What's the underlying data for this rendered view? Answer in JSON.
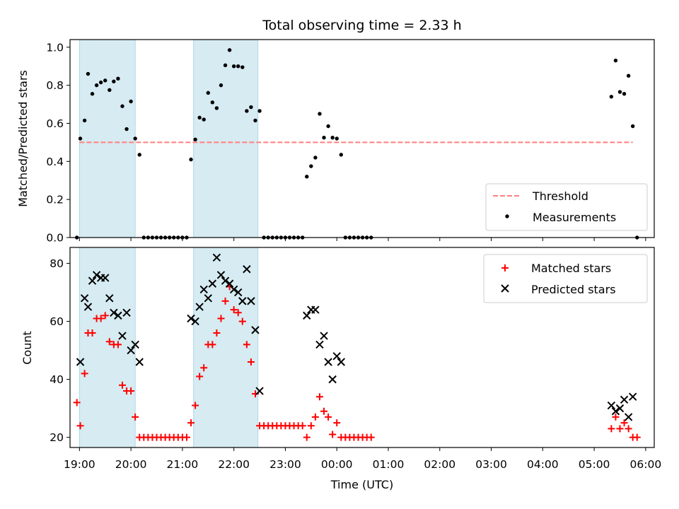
{
  "chart_data": [
    {
      "type": "scatter",
      "title": "Total observing time = 2.33 h",
      "xlabel": "",
      "ylabel": "Matched/Predicted stars",
      "ylim": [
        0,
        1.04
      ],
      "xlim": [
        "18:49",
        "06:10"
      ],
      "yticks": [
        "0.0",
        "0.2",
        "0.4",
        "0.6",
        "0.8",
        "1.0"
      ],
      "shaded_intervals": [
        [
          "19:00",
          "20:05"
        ],
        [
          "21:13",
          "22:28"
        ]
      ],
      "threshold": {
        "name": "Threshold",
        "value": 0.5,
        "x_start": "19:00",
        "x_end": "05:45",
        "color": "#ff7f7f"
      },
      "series": [
        {
          "name": "Measurements",
          "color": "#000000",
          "points": [
            [
              "18:57",
              0.0
            ],
            [
              "19:01",
              0.52
            ],
            [
              "19:06",
              0.615
            ],
            [
              "19:10",
              0.86
            ],
            [
              "19:15",
              0.755
            ],
            [
              "19:20",
              0.8
            ],
            [
              "19:25",
              0.815
            ],
            [
              "19:30",
              0.825
            ],
            [
              "19:35",
              0.775
            ],
            [
              "19:40",
              0.82
            ],
            [
              "19:45",
              0.835
            ],
            [
              "19:50",
              0.69
            ],
            [
              "19:55",
              0.57
            ],
            [
              "20:00",
              0.715
            ],
            [
              "20:05",
              0.52
            ],
            [
              "20:10",
              0.435
            ],
            [
              "20:15",
              0.0
            ],
            [
              "20:20",
              0.0
            ],
            [
              "20:25",
              0.0
            ],
            [
              "20:30",
              0.0
            ],
            [
              "20:35",
              0.0
            ],
            [
              "20:40",
              0.0
            ],
            [
              "20:45",
              0.0
            ],
            [
              "20:50",
              0.0
            ],
            [
              "20:55",
              0.0
            ],
            [
              "21:00",
              0.0
            ],
            [
              "21:05",
              0.0
            ],
            [
              "21:10",
              0.41
            ],
            [
              "21:15",
              0.515
            ],
            [
              "21:20",
              0.63
            ],
            [
              "21:25",
              0.62
            ],
            [
              "21:30",
              0.76
            ],
            [
              "21:35",
              0.71
            ],
            [
              "21:40",
              0.68
            ],
            [
              "21:45",
              0.8
            ],
            [
              "21:50",
              0.905
            ],
            [
              "21:55",
              0.985
            ],
            [
              "22:00",
              0.9
            ],
            [
              "22:05",
              0.9
            ],
            [
              "22:10",
              0.895
            ],
            [
              "22:15",
              0.665
            ],
            [
              "22:20",
              0.685
            ],
            [
              "22:25",
              0.615
            ],
            [
              "22:30",
              0.665
            ],
            [
              "22:35",
              0.0
            ],
            [
              "22:40",
              0.0
            ],
            [
              "22:45",
              0.0
            ],
            [
              "22:50",
              0.0
            ],
            [
              "22:55",
              0.0
            ],
            [
              "23:00",
              0.0
            ],
            [
              "23:05",
              0.0
            ],
            [
              "23:10",
              0.0
            ],
            [
              "23:15",
              0.0
            ],
            [
              "23:20",
              0.0
            ],
            [
              "23:25",
              0.32
            ],
            [
              "23:30",
              0.375
            ],
            [
              "23:35",
              0.42
            ],
            [
              "23:40",
              0.65
            ],
            [
              "23:45",
              0.525
            ],
            [
              "23:50",
              0.585
            ],
            [
              "23:55",
              0.525
            ],
            [
              "00:00",
              0.52
            ],
            [
              "00:05",
              0.435
            ],
            [
              "00:10",
              0.0
            ],
            [
              "00:15",
              0.0
            ],
            [
              "00:20",
              0.0
            ],
            [
              "00:25",
              0.0
            ],
            [
              "00:30",
              0.0
            ],
            [
              "00:35",
              0.0
            ],
            [
              "00:40",
              0.0
            ],
            [
              "05:20",
              0.74
            ],
            [
              "05:25",
              0.93
            ],
            [
              "05:30",
              0.765
            ],
            [
              "05:35",
              0.755
            ],
            [
              "05:40",
              0.85
            ],
            [
              "05:45",
              0.585
            ],
            [
              "05:50",
              0.0
            ]
          ]
        }
      ],
      "legend": {
        "placement": "lower right",
        "entries": [
          "Threshold",
          "Measurements"
        ]
      }
    },
    {
      "type": "scatter",
      "title": "",
      "xlabel": "Time (UTC)",
      "ylabel": "Count",
      "ylim": [
        16.5,
        85.5
      ],
      "xlim": [
        "18:49",
        "06:10"
      ],
      "yticks": [
        "20",
        "40",
        "60",
        "80"
      ],
      "xticks": [
        "19:00",
        "20:00",
        "21:00",
        "22:00",
        "23:00",
        "00:00",
        "01:00",
        "02:00",
        "03:00",
        "04:00",
        "05:00",
        "06:00"
      ],
      "shaded_intervals": [
        [
          "19:00",
          "20:05"
        ],
        [
          "21:13",
          "22:28"
        ]
      ],
      "series": [
        {
          "name": "Matched stars",
          "marker": "plus",
          "color": "#ff0000",
          "points": [
            [
              "18:57",
              32
            ],
            [
              "19:01",
              24
            ],
            [
              "19:06",
              42
            ],
            [
              "19:10",
              56
            ],
            [
              "19:15",
              56
            ],
            [
              "19:20",
              61
            ],
            [
              "19:25",
              61
            ],
            [
              "19:30",
              62
            ],
            [
              "19:35",
              53
            ],
            [
              "19:40",
              52
            ],
            [
              "19:45",
              52
            ],
            [
              "19:50",
              38
            ],
            [
              "19:55",
              36
            ],
            [
              "20:00",
              36
            ],
            [
              "20:05",
              27
            ],
            [
              "20:10",
              20
            ],
            [
              "20:15",
              20
            ],
            [
              "20:20",
              20
            ],
            [
              "20:25",
              20
            ],
            [
              "20:30",
              20
            ],
            [
              "20:35",
              20
            ],
            [
              "20:40",
              20
            ],
            [
              "20:45",
              20
            ],
            [
              "20:50",
              20
            ],
            [
              "20:55",
              20
            ],
            [
              "21:00",
              20
            ],
            [
              "21:05",
              20
            ],
            [
              "21:10",
              25
            ],
            [
              "21:15",
              31
            ],
            [
              "21:20",
              41
            ],
            [
              "21:25",
              44
            ],
            [
              "21:30",
              52
            ],
            [
              "21:35",
              52
            ],
            [
              "21:40",
              56
            ],
            [
              "21:45",
              61
            ],
            [
              "21:50",
              67
            ],
            [
              "21:55",
              72
            ],
            [
              "22:00",
              64
            ],
            [
              "22:05",
              63
            ],
            [
              "22:10",
              60
            ],
            [
              "22:15",
              52
            ],
            [
              "22:20",
              46
            ],
            [
              "22:25",
              35
            ],
            [
              "22:30",
              24
            ],
            [
              "22:35",
              24
            ],
            [
              "22:40",
              24
            ],
            [
              "22:45",
              24
            ],
            [
              "22:50",
              24
            ],
            [
              "22:55",
              24
            ],
            [
              "23:00",
              24
            ],
            [
              "23:05",
              24
            ],
            [
              "23:10",
              24
            ],
            [
              "23:15",
              24
            ],
            [
              "23:20",
              24
            ],
            [
              "23:25",
              20
            ],
            [
              "23:30",
              24
            ],
            [
              "23:35",
              27
            ],
            [
              "23:40",
              34
            ],
            [
              "23:45",
              29
            ],
            [
              "23:50",
              27
            ],
            [
              "23:55",
              21
            ],
            [
              "00:00",
              25
            ],
            [
              "00:05",
              20
            ],
            [
              "00:10",
              20
            ],
            [
              "00:15",
              20
            ],
            [
              "00:20",
              20
            ],
            [
              "00:25",
              20
            ],
            [
              "00:30",
              20
            ],
            [
              "00:35",
              20
            ],
            [
              "00:40",
              20
            ],
            [
              "05:20",
              23
            ],
            [
              "05:25",
              27
            ],
            [
              "05:30",
              23
            ],
            [
              "05:35",
              25
            ],
            [
              "05:40",
              23
            ],
            [
              "05:45",
              20
            ],
            [
              "05:50",
              20
            ]
          ]
        },
        {
          "name": "Predicted stars",
          "marker": "x",
          "color": "#000000",
          "points": [
            [
              "19:01",
              46
            ],
            [
              "19:06",
              68
            ],
            [
              "19:10",
              65
            ],
            [
              "19:15",
              74
            ],
            [
              "19:20",
              76
            ],
            [
              "19:25",
              75
            ],
            [
              "19:30",
              75
            ],
            [
              "19:35",
              68
            ],
            [
              "19:40",
              63
            ],
            [
              "19:45",
              62
            ],
            [
              "19:50",
              55
            ],
            [
              "19:55",
              63
            ],
            [
              "20:00",
              50
            ],
            [
              "20:05",
              52
            ],
            [
              "20:10",
              46
            ],
            [
              "21:10",
              61
            ],
            [
              "21:15",
              60
            ],
            [
              "21:20",
              65
            ],
            [
              "21:25",
              71
            ],
            [
              "21:30",
              68
            ],
            [
              "21:35",
              73
            ],
            [
              "21:40",
              82
            ],
            [
              "21:45",
              76
            ],
            [
              "21:50",
              74
            ],
            [
              "21:55",
              73
            ],
            [
              "22:00",
              71
            ],
            [
              "22:05",
              70
            ],
            [
              "22:10",
              67
            ],
            [
              "22:15",
              78
            ],
            [
              "22:20",
              67
            ],
            [
              "22:25",
              57
            ],
            [
              "22:30",
              36
            ],
            [
              "23:25",
              62
            ],
            [
              "23:30",
              64
            ],
            [
              "23:35",
              64
            ],
            [
              "23:40",
              52
            ],
            [
              "23:45",
              55
            ],
            [
              "23:50",
              46
            ],
            [
              "23:55",
              40
            ],
            [
              "00:00",
              48
            ],
            [
              "00:05",
              46
            ],
            [
              "05:20",
              31
            ],
            [
              "05:25",
              29
            ],
            [
              "05:30",
              30
            ],
            [
              "05:35",
              33
            ],
            [
              "05:40",
              27
            ],
            [
              "05:45",
              34
            ]
          ]
        }
      ],
      "legend": {
        "placement": "upper right",
        "entries": [
          "Matched stars",
          "Predicted stars"
        ]
      }
    }
  ]
}
